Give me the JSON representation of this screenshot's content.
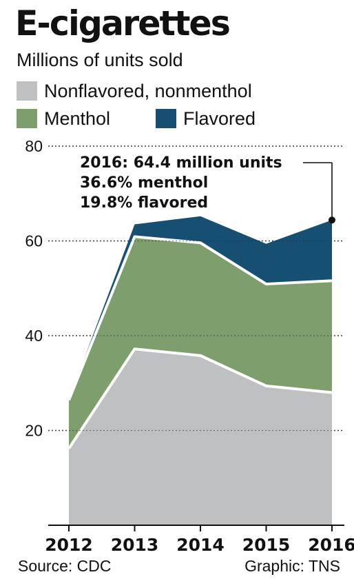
{
  "chart_data": {
    "type": "area",
    "stacked": true,
    "title": "E-cigarettes",
    "subtitle": "Millions of units sold",
    "categories": [
      "2012",
      "2013",
      "2014",
      "2015",
      "2016"
    ],
    "series": [
      {
        "name": "Nonflavored, nonmenthol",
        "color": "#bfc0c2",
        "values": [
          16.2,
          37.2,
          35.8,
          29.4,
          28.0
        ]
      },
      {
        "name": "Menthol",
        "color": "#7f9e6e",
        "values": [
          10.2,
          23.7,
          23.8,
          21.5,
          23.6
        ]
      },
      {
        "name": "Flavored",
        "color": "#174f73",
        "values": [
          0.2,
          2.6,
          5.6,
          8.5,
          12.8
        ]
      }
    ],
    "ylim": [
      0,
      80
    ],
    "yticks": [
      "20",
      "40",
      "60",
      "80"
    ],
    "grid": true,
    "legend": "top",
    "annotation": {
      "category": "2016",
      "lines": [
        "2016: 64.4 million units",
        "36.6% menthol",
        "19.8% flavored"
      ]
    },
    "source": "Source: CDC",
    "credit": "Graphic: TNS"
  }
}
